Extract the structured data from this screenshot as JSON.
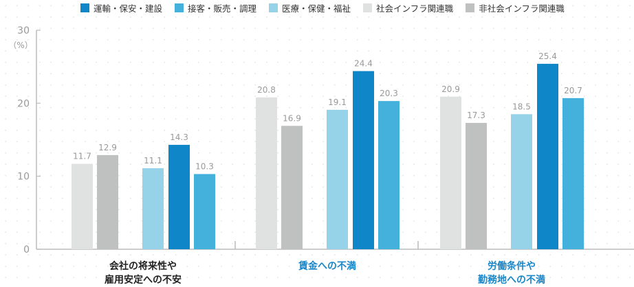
{
  "chart_data": {
    "type": "bar",
    "ylabel": "（%）",
    "ylim": [
      0,
      30
    ],
    "yticks": [
      0,
      10,
      20,
      30
    ],
    "categories": [
      "会社の将来性や\n雇用安定への不安",
      "賃金への不満",
      "労働条件や\n勤務地への不満"
    ],
    "category_colors": [
      "#222222",
      "#1a87c9",
      "#1a87c9"
    ],
    "series": [
      {
        "name": "社会インフラ関連職",
        "color": "#e0e1e1",
        "values": [
          11.7,
          20.8,
          20.9
        ]
      },
      {
        "name": "非社会インフラ関連職",
        "color": "#bfc0c0",
        "values": [
          12.9,
          16.9,
          17.3
        ]
      },
      {
        "name": "医療・保健・福祉",
        "color": "#96d3e9",
        "values": [
          11.1,
          19.1,
          18.5
        ]
      },
      {
        "name": "運輸・保安・建設",
        "color": "#0f86c8",
        "values": [
          14.3,
          24.4,
          25.4
        ]
      },
      {
        "name": "接客・販売・調理",
        "color": "#44b0dc",
        "values": [
          10.3,
          20.3,
          20.7
        ]
      }
    ],
    "legend_order": [
      3,
      4,
      2,
      0,
      1
    ],
    "legend": "top"
  }
}
